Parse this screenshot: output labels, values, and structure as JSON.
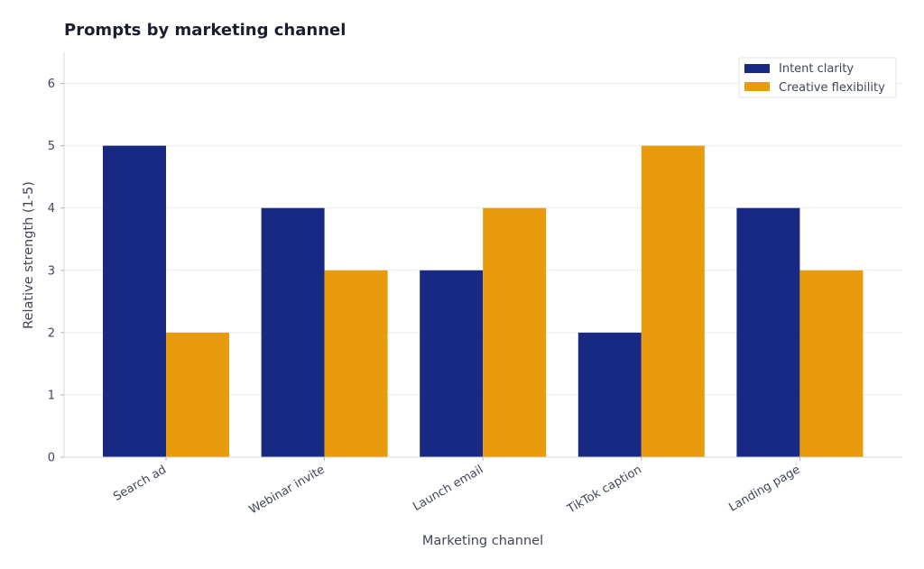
{
  "chart_data": {
    "type": "bar",
    "title": "Prompts by marketing channel",
    "xlabel": "Marketing channel",
    "ylabel": "Relative strength (1-5)",
    "categories": [
      "Search ad",
      "Webinar invite",
      "Launch email",
      "TikTok caption",
      "Landing page"
    ],
    "series": [
      {
        "name": "Intent clarity",
        "values": [
          5,
          4,
          3,
          2,
          4
        ],
        "color": "#182983"
      },
      {
        "name": "Creative flexibility",
        "values": [
          2,
          3,
          4,
          5,
          3
        ],
        "color": "#e89b0c"
      }
    ],
    "ylim": [
      0,
      6.5
    ],
    "yticks": [
      0,
      1,
      2,
      3,
      4,
      5,
      6
    ],
    "grid": "horizontal",
    "legend_position": "top-right",
    "colors": {
      "grid": "#ebebeb",
      "axis": "#d9d9d9",
      "text": "#3f4656",
      "title": "#1b1e2e"
    }
  }
}
